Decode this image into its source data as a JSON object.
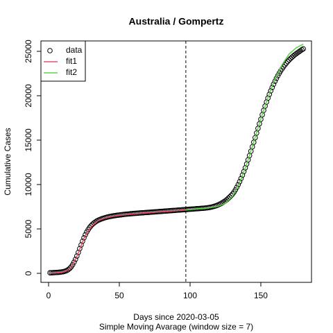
{
  "chart_data": {
    "type": "scatter",
    "title": "Australia / Gompertz",
    "xlabel": "Days since 2020-03-05",
    "subtitle": "Simple Moving Avarage (window size = 7)",
    "ylabel": "Cumulative Cases",
    "xlim": [
      -5.4,
      185.8
    ],
    "ylim": [
      -1016,
      26172
    ],
    "xticks": [
      0,
      50,
      100,
      150
    ],
    "yticks": [
      0,
      5000,
      10000,
      15000,
      20000,
      25000
    ],
    "vline": 97,
    "legend": "top-left",
    "series": [
      {
        "name": "data",
        "color": "#000000",
        "style": "points",
        "x": [
          1,
          2,
          3,
          4,
          5,
          6,
          7,
          8,
          9,
          10,
          11,
          12,
          13,
          14,
          15,
          16,
          17,
          18,
          19,
          20,
          21,
          22,
          23,
          24,
          25,
          26,
          27,
          28,
          29,
          30,
          31,
          32,
          33,
          34,
          35,
          36,
          37,
          38,
          39,
          40,
          41,
          42,
          43,
          44,
          45,
          46,
          47,
          48,
          49,
          50,
          51,
          52,
          53,
          54,
          55,
          56,
          57,
          58,
          59,
          60,
          61,
          62,
          63,
          64,
          65,
          66,
          67,
          68,
          69,
          70,
          71,
          72,
          73,
          74,
          75,
          76,
          77,
          78,
          79,
          80,
          81,
          82,
          83,
          84,
          85,
          86,
          87,
          88,
          89,
          90,
          91,
          92,
          93,
          94,
          95,
          96,
          97,
          98,
          99,
          100,
          101,
          102,
          103,
          104,
          105,
          106,
          107,
          108,
          109,
          110,
          111,
          112,
          113,
          114,
          115,
          116,
          117,
          118,
          119,
          120,
          121,
          122,
          123,
          124,
          125,
          126,
          127,
          128,
          129,
          130,
          131,
          132,
          133,
          134,
          135,
          136,
          137,
          138,
          139,
          140,
          141,
          142,
          143,
          144,
          145,
          146,
          147,
          148,
          149,
          150,
          151,
          152,
          153,
          154,
          155,
          156,
          157,
          158,
          159,
          160,
          161,
          162,
          163,
          164,
          165,
          166,
          167,
          168,
          169,
          170,
          171,
          172,
          173,
          174,
          175,
          176,
          177,
          178,
          179,
          180
        ],
        "values": [
          60,
          65,
          70,
          80,
          90,
          100,
          115,
          130,
          150,
          175,
          210,
          260,
          330,
          430,
          560,
          740,
          970,
          1250,
          1580,
          1950,
          2350,
          2780,
          3200,
          3620,
          4000,
          4350,
          4660,
          4930,
          5160,
          5360,
          5520,
          5660,
          5780,
          5880,
          5970,
          6040,
          6110,
          6170,
          6220,
          6270,
          6310,
          6350,
          6390,
          6420,
          6450,
          6480,
          6500,
          6530,
          6550,
          6570,
          6590,
          6610,
          6630,
          6650,
          6660,
          6680,
          6690,
          6710,
          6720,
          6740,
          6752,
          6764,
          6776,
          6788,
          6800,
          6812,
          6824,
          6836,
          6848,
          6860,
          6872,
          6884,
          6896,
          6908,
          6920,
          6932,
          6944,
          6956,
          6968,
          6980,
          6992,
          7004,
          7016,
          7028,
          7040,
          7052,
          7064,
          7076,
          7088,
          7100,
          7112,
          7124,
          7136,
          7148,
          7160,
          7172,
          7184,
          7196,
          7208,
          7220,
          7232,
          7244,
          7256,
          7268,
          7280,
          7292,
          7304,
          7316,
          7328,
          7340,
          7360,
          7380,
          7400,
          7430,
          7460,
          7500,
          7540,
          7590,
          7650,
          7720,
          7800,
          7880,
          7970,
          8070,
          8180,
          8310,
          8450,
          8600,
          8760,
          8930,
          9150,
          9400,
          9680,
          9990,
          10320,
          10680,
          11060,
          11460,
          11880,
          12320,
          12780,
          13260,
          13750,
          14250,
          14760,
          15280,
          15800,
          16320,
          16840,
          17350,
          17860,
          18350,
          18830,
          19290,
          19730,
          20150,
          20550,
          20930,
          21290,
          21630,
          21950,
          22250,
          22530,
          22790,
          23030,
          23260,
          23470,
          23670,
          23860,
          24030,
          24190,
          24340,
          24480,
          24610,
          24730,
          24850,
          24960,
          25070,
          25180,
          25280
        ]
      },
      {
        "name": "fit1",
        "color": "#DF536B",
        "style": "line",
        "x": [
          1,
          5,
          10,
          15,
          20,
          25,
          30,
          35,
          40,
          45,
          50,
          55,
          60,
          65,
          70,
          75,
          80,
          85,
          90,
          95,
          97
        ],
        "values": [
          20,
          60,
          150,
          520,
          1900,
          3950,
          5300,
          5950,
          6250,
          6420,
          6540,
          6630,
          6700,
          6780,
          6840,
          6900,
          6960,
          7020,
          7070,
          7120,
          7140
        ]
      },
      {
        "name": "fit2",
        "color": "#61D04F",
        "style": "line",
        "x": [
          97,
          100,
          105,
          110,
          115,
          120,
          125,
          130,
          135,
          140,
          145,
          150,
          155,
          160,
          165,
          170,
          175,
          180
        ],
        "values": [
          7140,
          7200,
          7260,
          7330,
          7420,
          7560,
          7900,
          8700,
          10200,
          12300,
          14800,
          17400,
          19800,
          21900,
          23500,
          24700,
          25400,
          25800
        ]
      }
    ]
  }
}
